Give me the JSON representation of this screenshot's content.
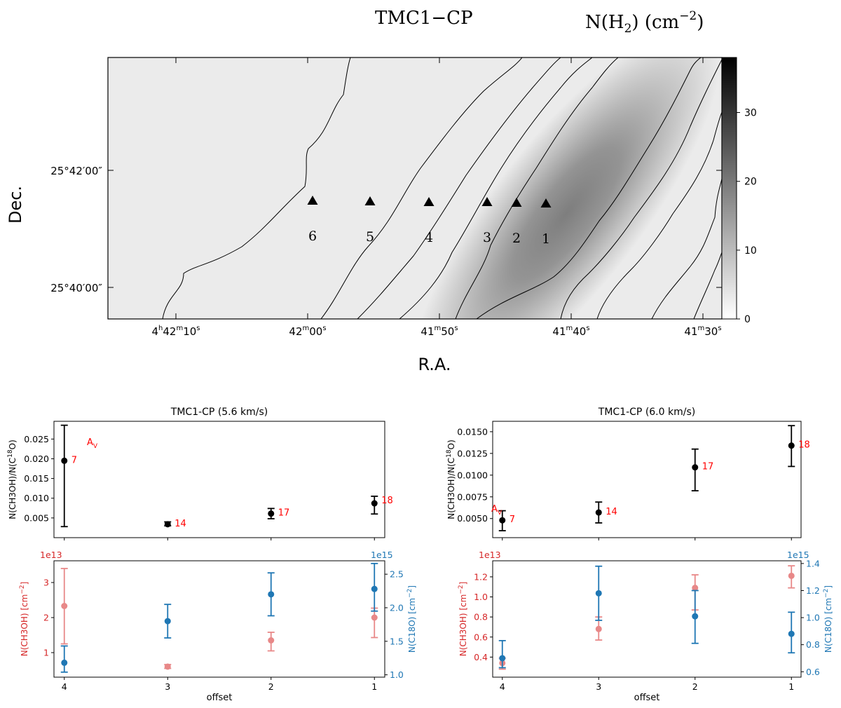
{
  "colors": {
    "red": "#d62728",
    "red_light": "#e77c7c",
    "blue": "#1f77b4",
    "black": "#000000",
    "annotation": "#ff0000"
  },
  "chart_data": [
    {
      "type": "heatmap",
      "title": "TMC1−CP",
      "colorbar_label": "N(H₂) (cm⁻²)",
      "colorbar_label_parts": {
        "prefix": "N(H",
        "sub": "2",
        "mid": ") (cm",
        "sup": "−2",
        "suffix": ")"
      },
      "colorbar_ticks": [
        "0",
        "10",
        "20",
        "30"
      ],
      "colorbar_range": [
        0,
        38
      ],
      "colormap": "gray_r",
      "xlabel": "R.A.",
      "ylabel": "Dec.",
      "x_ticks": [
        {
          "h": "4",
          "m": "42",
          "s": "10",
          "kind": "hms"
        },
        {
          "m": "42",
          "s": "00",
          "kind": "ms"
        },
        {
          "m": "41",
          "s": "50",
          "kind": "ms"
        },
        {
          "m": "41",
          "s": "40",
          "kind": "ms"
        },
        {
          "m": "41",
          "s": "30",
          "kind": "ms"
        }
      ],
      "y_ticks": [
        "25°42′00″",
        "25°40′00″"
      ],
      "points": [
        {
          "label": "1"
        },
        {
          "label": "2"
        },
        {
          "label": "3"
        },
        {
          "label": "4"
        },
        {
          "label": "5"
        },
        {
          "label": "6"
        }
      ]
    },
    {
      "type": "scatter",
      "title": "TMC1-CP (5.6 km/s)",
      "ylabel": "N(CH3OH)/N(C¹⁸O)",
      "ylabel_parts": {
        "prefix": "N(CH3OH)/N(C",
        "sup": "18",
        "suffix": "O)"
      },
      "annotation": "A",
      "annotation_sub": "V",
      "x": [
        4,
        3,
        2,
        1
      ],
      "xlim": [
        4.1,
        0.9
      ],
      "ylim": [
        0.0,
        0.0295
      ],
      "y_ticks": [
        "0.005",
        "0.010",
        "0.015",
        "0.020",
        "0.025"
      ],
      "y_tick_values": [
        0.005,
        0.01,
        0.015,
        0.02,
        0.025
      ],
      "values": [
        0.0195,
        0.0034,
        0.0061,
        0.0087
      ],
      "err_low": [
        0.0028,
        0.003,
        0.0048,
        0.006
      ],
      "err_high": [
        0.0285,
        0.004,
        0.0074,
        0.0105
      ],
      "labels": [
        "7",
        "14",
        "17",
        "18"
      ]
    },
    {
      "type": "scatter",
      "title": "TMC1-CP (6.0 km/s)",
      "ylabel": "N(CH3OH)/N(C¹⁸O)",
      "ylabel_parts": {
        "prefix": "N(CH3OH)/N(C",
        "sup": "18",
        "suffix": "O)"
      },
      "annotation": "A",
      "annotation_sub": "V",
      "x": [
        4,
        3,
        2,
        1
      ],
      "xlim": [
        4.1,
        0.9
      ],
      "ylim": [
        0.0028,
        0.0162
      ],
      "y_ticks": [
        "0.0050",
        "0.0075",
        "0.0100",
        "0.0125",
        "0.0150"
      ],
      "y_tick_values": [
        0.005,
        0.0075,
        0.01,
        0.0125,
        0.015
      ],
      "values": [
        0.0048,
        0.0057,
        0.0109,
        0.0134
      ],
      "err_low": [
        0.0036,
        0.0045,
        0.0082,
        0.011
      ],
      "err_high": [
        0.0059,
        0.0069,
        0.013,
        0.0157
      ],
      "labels": [
        "7",
        "14",
        "17",
        "18"
      ]
    },
    {
      "type": "scatter",
      "xlabel": "offset",
      "x": [
        4,
        3,
        2,
        1
      ],
      "x_ticks": [
        "4",
        "3",
        "2",
        "1"
      ],
      "xlim": [
        4.1,
        0.9
      ],
      "left": {
        "ylabel": "N(CH3OH) [cm⁻²]",
        "ylabel_parts": {
          "prefix": "N(CH3OH) [cm",
          "sup": "−2",
          "suffix": "]"
        },
        "offset_label": "1e13",
        "ylim": [
          0.3,
          3.62
        ],
        "y_ticks": [
          "1",
          "2",
          "3"
        ],
        "y_tick_values": [
          1,
          2,
          3
        ],
        "values": [
          2.33,
          0.6,
          1.35,
          2.0
        ],
        "err_low": [
          1.25,
          0.55,
          1.05,
          1.43
        ],
        "err_high": [
          3.4,
          0.66,
          1.58,
          2.27
        ]
      },
      "right": {
        "ylabel": "N(C18O) [cm⁻²]",
        "ylabel_parts": {
          "prefix": "N(C18O) [cm",
          "sup": "−2",
          "suffix": "]"
        },
        "offset_label": "1e15",
        "ylim": [
          0.965,
          2.7
        ],
        "y_ticks": [
          "1.0",
          "1.5",
          "2.0",
          "2.5"
        ],
        "y_tick_values": [
          1.0,
          1.5,
          2.0,
          2.5
        ],
        "values": [
          1.18,
          1.8,
          2.2,
          2.28
        ],
        "err_low": [
          1.04,
          1.55,
          1.88,
          1.95
        ],
        "err_high": [
          1.43,
          2.05,
          2.52,
          2.66
        ]
      }
    },
    {
      "type": "scatter",
      "xlabel": "offset",
      "x": [
        4,
        3,
        2,
        1
      ],
      "x_ticks": [
        "4",
        "3",
        "2",
        "1"
      ],
      "xlim": [
        4.1,
        0.9
      ],
      "left": {
        "ylabel": "N(CH3OH) [cm⁻²]",
        "ylabel_parts": {
          "prefix": "N(CH3OH) [cm",
          "sup": "−2",
          "suffix": "]"
        },
        "offset_label": "1e13",
        "ylim": [
          0.2,
          1.36
        ],
        "y_ticks": [
          "0.4",
          "0.6",
          "0.8",
          "1.0",
          "1.2"
        ],
        "y_tick_values": [
          0.4,
          0.6,
          0.8,
          1.0,
          1.2
        ],
        "values": [
          0.34,
          0.68,
          1.09,
          1.21
        ],
        "err_low": [
          0.28,
          0.57,
          0.87,
          1.09
        ],
        "err_high": [
          0.39,
          0.8,
          1.22,
          1.31
        ]
      },
      "right": {
        "ylabel": "N(C18O) [cm⁻²]",
        "ylabel_parts": {
          "prefix": "N(C18O) [cm",
          "sup": "−2",
          "suffix": "]"
        },
        "offset_label": "1e15",
        "ylim": [
          0.56,
          1.42
        ],
        "y_ticks": [
          "0.6",
          "0.8",
          "1.0",
          "1.2",
          "1.4"
        ],
        "y_tick_values": [
          0.6,
          0.8,
          1.0,
          1.2,
          1.4
        ],
        "values": [
          0.7,
          1.18,
          1.01,
          0.88
        ],
        "err_low": [
          0.63,
          0.98,
          0.81,
          0.74
        ],
        "err_high": [
          0.83,
          1.38,
          1.2,
          1.04
        ]
      }
    }
  ]
}
